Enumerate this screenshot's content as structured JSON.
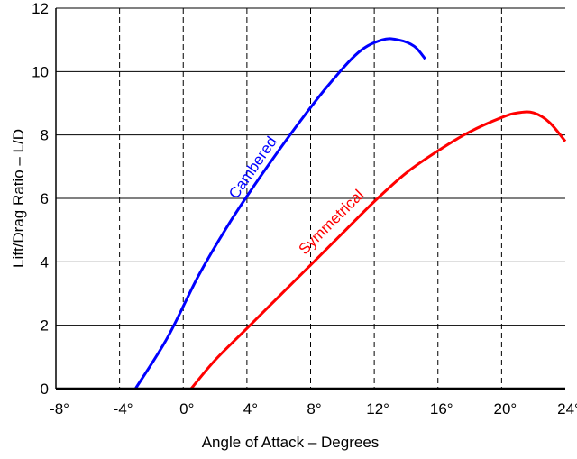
{
  "chart_data": {
    "type": "line",
    "xlabel": "Angle of Attack – Degrees",
    "ylabel": "Lift/Drag Ratio – L/D",
    "xlim": [
      -8,
      24
    ],
    "ylim": [
      0,
      12
    ],
    "x_ticks": [
      -8,
      -4,
      0,
      4,
      8,
      12,
      16,
      20,
      24
    ],
    "x_tick_labels": [
      "-8°",
      "-4°",
      "0°",
      "4°",
      "8°",
      "12°",
      "16°",
      "20°",
      "24°"
    ],
    "y_ticks": [
      0,
      2,
      4,
      6,
      8,
      10,
      12
    ],
    "y_tick_labels": [
      "0",
      "2",
      "4",
      "6",
      "8",
      "10",
      "12"
    ],
    "grid": {
      "x": "dashed",
      "y": "solid"
    },
    "legend": "none",
    "series": [
      {
        "name": "Cambered",
        "color": "#0000ff",
        "x": [
          -3.0,
          -1.0,
          1.0,
          3.0,
          5.0,
          7.0,
          9.0,
          11.0,
          12.5,
          13.5,
          14.5,
          15.2
        ],
        "y": [
          0.0,
          1.6,
          3.6,
          5.3,
          6.8,
          8.2,
          9.5,
          10.6,
          11.0,
          11.0,
          10.8,
          10.4
        ]
      },
      {
        "name": "Symmetrical",
        "color": "#ff0000",
        "x": [
          0.5,
          2.0,
          4.0,
          6.0,
          8.0,
          10.0,
          12.0,
          14.0,
          16.0,
          18.0,
          20.0,
          21.0,
          22.0,
          23.0,
          24.0
        ],
        "y": [
          0.0,
          0.9,
          1.9,
          2.9,
          3.9,
          4.9,
          5.9,
          6.8,
          7.5,
          8.1,
          8.55,
          8.7,
          8.7,
          8.4,
          7.8
        ]
      }
    ],
    "annotations": [
      {
        "text": "Cambered",
        "series": 0
      },
      {
        "text": "Symmetrical",
        "series": 1
      }
    ]
  }
}
